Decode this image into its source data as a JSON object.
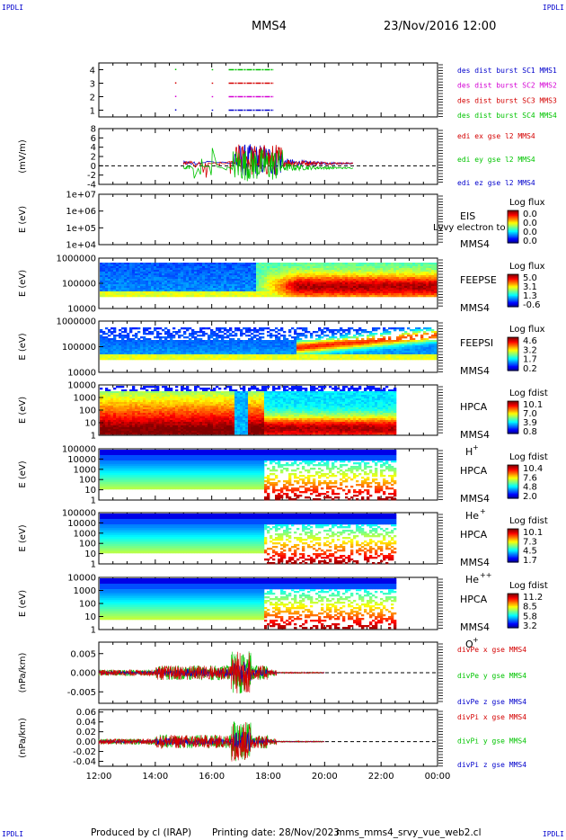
{
  "corners": {
    "tl": "IPDLI",
    "tr": "IPDLI",
    "bl": "IPDLI",
    "br": "IPDLI"
  },
  "header": {
    "spacecraft": "MMS4",
    "datetime": "23/Nov/2016 12:00"
  },
  "footer": {
    "produced": "Produced by cl (IRAP)",
    "printing": "Printing date: 28/Nov/2023",
    "file": "mms_mms4_srvy_vue_web2.cl"
  },
  "colors": {
    "red": "#d40000",
    "magenta": "#d400d4",
    "blue": "#0000cc",
    "green": "#00c400",
    "black": "#000000"
  },
  "chart_data": [
    {
      "type": "scatter",
      "id": "burst",
      "yticks": [
        "1",
        "2",
        "3",
        "4"
      ],
      "ylim": [
        0.5,
        4.5
      ],
      "xlim": [
        12,
        24
      ],
      "legend": [
        {
          "label": "des dist burst SC1 MMS1",
          "color": "#0000cc"
        },
        {
          "label": "des dist burst SC2 MMS2",
          "color": "#d400d4"
        },
        {
          "label": "des dist burst SC3 MMS3",
          "color": "#d40000"
        },
        {
          "label": "des dist burst SC4 MMS4",
          "color": "#00c400"
        }
      ],
      "series": [
        {
          "level": 4,
          "color": "#00c400",
          "segments": [
            [
              16.0,
              16.05
            ],
            [
              16.6,
              18.2
            ]
          ],
          "dots": [
            14.7
          ]
        },
        {
          "level": 3,
          "color": "#d40000",
          "segments": [
            [
              16.0,
              16.05
            ],
            [
              16.6,
              18.2
            ]
          ],
          "dots": [
            14.7
          ]
        },
        {
          "level": 2,
          "color": "#d400d4",
          "segments": [
            [
              16.0,
              16.05
            ],
            [
              16.6,
              18.2
            ]
          ],
          "dots": [
            14.7
          ]
        },
        {
          "level": 1,
          "color": "#0000cc",
          "segments": [
            [
              16.0,
              16.05
            ],
            [
              16.6,
              18.2
            ]
          ],
          "dots": [
            14.7
          ]
        }
      ]
    },
    {
      "type": "line",
      "id": "efield",
      "ylabel": "(mV/m)",
      "ylim": [
        -4,
        8
      ],
      "yticks": [
        "8",
        "6",
        "4",
        "2",
        "0",
        "-2",
        "-4"
      ],
      "yticks_values": [
        8,
        6,
        4,
        2,
        0,
        -2,
        -4
      ],
      "xlim": [
        12,
        24
      ],
      "legend": [
        {
          "label": "edi ex gse l2 MMS4",
          "color": "#d40000"
        },
        {
          "label": "edi ey gse l2 MMS4",
          "color": "#00c400"
        },
        {
          "label": "edi ez gse l2 MMS4",
          "color": "#0000cc"
        }
      ],
      "data_range": [
        15.0,
        21.0
      ]
    },
    {
      "type": "heatmap",
      "id": "eis",
      "ylabel": "E (eV)",
      "yticks": [
        "1e+07",
        "1e+06",
        "1e+05",
        "1e+04"
      ],
      "label_lines": [
        "EIS",
        "MMS4"
      ],
      "overlay": "Lvvy electron to",
      "colorbar": {
        "title": "Log flux",
        "ticks": [
          "0.0",
          "0.0",
          "0.0",
          "0.0"
        ]
      },
      "empty": true
    },
    {
      "type": "heatmap",
      "id": "feepse",
      "ylabel": "E (eV)",
      "yticks": [
        "1000000",
        "100000",
        "10000"
      ],
      "label_lines": [
        "FEEPSE",
        "MMS4"
      ],
      "colorbar": {
        "title": "Log flux",
        "ticks": [
          "5.0",
          "3.1",
          "1.3",
          "-0.6"
        ]
      },
      "xlim": [
        12,
        24
      ]
    },
    {
      "type": "heatmap",
      "id": "feepsi",
      "ylabel": "E (eV)",
      "yticks": [
        "1000000",
        "100000",
        "10000"
      ],
      "label_lines": [
        "FEEPSI",
        "MMS4"
      ],
      "colorbar": {
        "title": "Log flux",
        "ticks": [
          "4.6",
          "3.2",
          "1.7",
          "0.2"
        ]
      },
      "xlim": [
        12,
        24
      ]
    },
    {
      "type": "heatmap",
      "id": "hpca_h",
      "ylabel": "E (eV)",
      "yticks": [
        "10000",
        "1000",
        "100",
        "10",
        "1"
      ],
      "label_lines": [
        "HPCA",
        "MMS4"
      ],
      "species": "H",
      "species_sup": "+",
      "colorbar": {
        "title": "Log fdist",
        "ticks": [
          "10.1",
          "7.0",
          "3.9",
          "0.8"
        ]
      },
      "xlim": [
        12,
        24
      ]
    },
    {
      "type": "heatmap",
      "id": "hpca_he",
      "ylabel": "E (eV)",
      "yticks": [
        "100000",
        "10000",
        "1000",
        "100",
        "10",
        "1"
      ],
      "label_lines": [
        "HPCA",
        "MMS4"
      ],
      "species": "He",
      "species_sup": "+",
      "colorbar": {
        "title": "Log fdist",
        "ticks": [
          "10.4",
          "7.6",
          "4.8",
          "2.0"
        ]
      },
      "xlim": [
        12,
        24
      ]
    },
    {
      "type": "heatmap",
      "id": "hpca_hepp",
      "ylabel": "E (eV)",
      "yticks": [
        "100000",
        "10000",
        "1000",
        "100",
        "10",
        "1"
      ],
      "label_lines": [
        "HPCA",
        "MMS4"
      ],
      "species": "He",
      "species_sup": "++",
      "colorbar": {
        "title": "Log fdist",
        "ticks": [
          "10.1",
          "7.3",
          "4.5",
          "1.7"
        ]
      },
      "xlim": [
        12,
        24
      ]
    },
    {
      "type": "heatmap",
      "id": "hpca_o",
      "ylabel": "E (eV)",
      "yticks": [
        "10000",
        "1000",
        "100",
        "10",
        "1"
      ],
      "label_lines": [
        "HPCA",
        "MMS4"
      ],
      "species": "O",
      "species_sup": "+",
      "colorbar": {
        "title": "Log fdist",
        "ticks": [
          "11.2",
          "8.5",
          "5.8",
          "3.2"
        ]
      },
      "xlim": [
        12,
        24
      ]
    },
    {
      "type": "line",
      "id": "divpe",
      "ylabel": "(nPa/km)",
      "ylim": [
        -0.008,
        0.008
      ],
      "yticks": [
        "0.005",
        "0.000",
        "-0.005"
      ],
      "yticks_values": [
        0.005,
        0.0,
        -0.005
      ],
      "xlim": [
        12,
        24
      ],
      "legend": [
        {
          "label": "divPe x gse MMS4",
          "color": "#d40000"
        },
        {
          "label": "divPe y gse MMS4",
          "color": "#00c400"
        },
        {
          "label": "divPe z gse MMS4",
          "color": "#0000cc"
        }
      ],
      "data_range": [
        12.0,
        20.0
      ]
    },
    {
      "type": "line",
      "id": "divpi",
      "ylabel": "(nPa/km)",
      "ylim": [
        -0.05,
        0.065
      ],
      "yticks": [
        "0.06",
        "0.04",
        "0.02",
        "0.00",
        "-0.02",
        "-0.04"
      ],
      "yticks_values": [
        0.06,
        0.04,
        0.02,
        0.0,
        -0.02,
        -0.04
      ],
      "xlim": [
        12,
        24
      ],
      "legend": [
        {
          "label": "divPi x gse MMS4",
          "color": "#d40000"
        },
        {
          "label": "divPi y gse MMS4",
          "color": "#00c400"
        },
        {
          "label": "divPi z gse MMS4",
          "color": "#0000cc"
        }
      ],
      "data_range": [
        12.0,
        20.0
      ]
    }
  ],
  "xaxis": {
    "ticks": [
      "12:00",
      "14:00",
      "16:00",
      "18:00",
      "20:00",
      "22:00",
      "00:00"
    ],
    "values": [
      12,
      14,
      16,
      18,
      20,
      22,
      24
    ]
  }
}
